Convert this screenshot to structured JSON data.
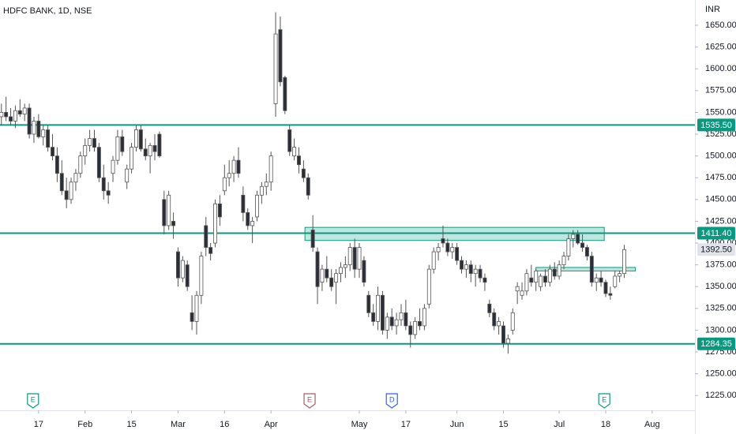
{
  "chart_data": {
    "type": "candlestick",
    "title": "HDFC BANK, 1D, NSE",
    "y_axis_label": "INR",
    "up_color": "#ffffff",
    "down_color": "#2a2e39",
    "level_color": "#089981",
    "grid": false,
    "xlim": [
      -0.3,
      149.2
    ],
    "ylim": [
      1208,
      1679
    ],
    "xticks": [
      {
        "value": 8,
        "label": "17"
      },
      {
        "value": 18,
        "label": "Feb"
      },
      {
        "value": 28,
        "label": "15"
      },
      {
        "value": 38,
        "label": "Mar"
      },
      {
        "value": 48,
        "label": "16"
      },
      {
        "value": 58,
        "label": "Apr"
      },
      {
        "value": 77,
        "label": "May"
      },
      {
        "value": 87,
        "label": "17"
      },
      {
        "value": 98,
        "label": "Jun"
      },
      {
        "value": 108,
        "label": "15"
      },
      {
        "value": 120,
        "label": "Jul"
      },
      {
        "value": 130,
        "label": "18"
      },
      {
        "value": 140,
        "label": "Aug"
      }
    ],
    "yticks": [
      {
        "value": 1225,
        "label": "1225.00"
      },
      {
        "value": 1250,
        "label": "1250.00"
      },
      {
        "value": 1275,
        "label": "1275.00"
      },
      {
        "value": 1300,
        "label": "1300.00"
      },
      {
        "value": 1325,
        "label": "1325.00"
      },
      {
        "value": 1350,
        "label": "1350.00"
      },
      {
        "value": 1375,
        "label": "1375.00"
      },
      {
        "value": 1400,
        "label": "1400.00"
      },
      {
        "value": 1425,
        "label": "1425.00"
      },
      {
        "value": 1450,
        "label": "1450.00"
      },
      {
        "value": 1475,
        "label": "1475.00"
      },
      {
        "value": 1500,
        "label": "1500.00"
      },
      {
        "value": 1525,
        "label": "1525.00"
      },
      {
        "value": 1550,
        "label": "1550.00"
      },
      {
        "value": 1575,
        "label": "1575.00"
      },
      {
        "value": 1600,
        "label": "1600.00"
      },
      {
        "value": 1625,
        "label": "1625.00"
      },
      {
        "value": 1650,
        "label": "1650.00"
      }
    ],
    "levels": [
      {
        "value": 1535.5,
        "label": "1535.50"
      },
      {
        "value": 1411.4,
        "label": "1411.40"
      },
      {
        "value": 1284.35,
        "label": "1284.35"
      }
    ],
    "last_price": {
      "value": 1392.5,
      "label": "1392.50"
    },
    "zones": [
      {
        "x": [
          65.3,
          129.7
        ],
        "y": [
          1403,
          1418
        ]
      },
      {
        "x": [
          115,
          136.4
        ],
        "y": [
          1368,
          1372
        ]
      }
    ],
    "events": [
      {
        "x": 6.8,
        "label": "E"
      },
      {
        "x": 66.3,
        "label": "E"
      },
      {
        "x": 84,
        "label": "D"
      },
      {
        "x": 129.7,
        "label": "E"
      }
    ],
    "candles": [
      {
        "o": 1545,
        "h": 1560,
        "l": 1535,
        "c": 1550
      },
      {
        "o": 1550,
        "h": 1568,
        "l": 1540,
        "c": 1545
      },
      {
        "o": 1545,
        "h": 1555,
        "l": 1535,
        "c": 1540
      },
      {
        "o": 1540,
        "h": 1558,
        "l": 1532,
        "c": 1552
      },
      {
        "o": 1552,
        "h": 1565,
        "l": 1545,
        "c": 1548
      },
      {
        "o": 1548,
        "h": 1560,
        "l": 1540,
        "c": 1555
      },
      {
        "o": 1555,
        "h": 1560,
        "l": 1520,
        "c": 1525
      },
      {
        "o": 1525,
        "h": 1545,
        "l": 1515,
        "c": 1540
      },
      {
        "o": 1540,
        "h": 1548,
        "l": 1520,
        "c": 1522
      },
      {
        "o": 1522,
        "h": 1535,
        "l": 1512,
        "c": 1530
      },
      {
        "o": 1530,
        "h": 1535,
        "l": 1505,
        "c": 1510
      },
      {
        "o": 1510,
        "h": 1525,
        "l": 1495,
        "c": 1500
      },
      {
        "o": 1500,
        "h": 1510,
        "l": 1470,
        "c": 1480
      },
      {
        "o": 1480,
        "h": 1495,
        "l": 1455,
        "c": 1460
      },
      {
        "o": 1460,
        "h": 1475,
        "l": 1440,
        "c": 1450
      },
      {
        "o": 1450,
        "h": 1475,
        "l": 1445,
        "c": 1470
      },
      {
        "o": 1470,
        "h": 1485,
        "l": 1460,
        "c": 1480
      },
      {
        "o": 1480,
        "h": 1505,
        "l": 1475,
        "c": 1500
      },
      {
        "o": 1500,
        "h": 1520,
        "l": 1490,
        "c": 1512
      },
      {
        "o": 1512,
        "h": 1530,
        "l": 1505,
        "c": 1520
      },
      {
        "o": 1520,
        "h": 1530,
        "l": 1505,
        "c": 1510
      },
      {
        "o": 1510,
        "h": 1515,
        "l": 1470,
        "c": 1475
      },
      {
        "o": 1475,
        "h": 1490,
        "l": 1450,
        "c": 1460
      },
      {
        "o": 1460,
        "h": 1470,
        "l": 1445,
        "c": 1455
      },
      {
        "o": 1480,
        "h": 1500,
        "l": 1470,
        "c": 1495
      },
      {
        "o": 1495,
        "h": 1530,
        "l": 1490,
        "c": 1522
      },
      {
        "o": 1522,
        "h": 1530,
        "l": 1500,
        "c": 1505
      },
      {
        "o": 1470,
        "h": 1490,
        "l": 1462,
        "c": 1485
      },
      {
        "o": 1485,
        "h": 1515,
        "l": 1480,
        "c": 1510
      },
      {
        "o": 1510,
        "h": 1535,
        "l": 1505,
        "c": 1530
      },
      {
        "o": 1530,
        "h": 1535,
        "l": 1505,
        "c": 1508
      },
      {
        "o": 1508,
        "h": 1520,
        "l": 1495,
        "c": 1500
      },
      {
        "o": 1500,
        "h": 1515,
        "l": 1480,
        "c": 1512
      },
      {
        "o": 1512,
        "h": 1525,
        "l": 1495,
        "c": 1505
      },
      {
        "o": 1525,
        "h": 1528,
        "l": 1498,
        "c": 1500
      },
      {
        "o": 1450,
        "h": 1460,
        "l": 1410,
        "c": 1420
      },
      {
        "o": 1420,
        "h": 1460,
        "l": 1415,
        "c": 1455
      },
      {
        "o": 1425,
        "h": 1435,
        "l": 1405,
        "c": 1420
      },
      {
        "o": 1390,
        "h": 1395,
        "l": 1350,
        "c": 1360
      },
      {
        "o": 1360,
        "h": 1385,
        "l": 1355,
        "c": 1380
      },
      {
        "o": 1375,
        "h": 1380,
        "l": 1345,
        "c": 1350
      },
      {
        "o": 1320,
        "h": 1340,
        "l": 1300,
        "c": 1310
      },
      {
        "o": 1310,
        "h": 1345,
        "l": 1295,
        "c": 1340
      },
      {
        "o": 1340,
        "h": 1390,
        "l": 1330,
        "c": 1385
      },
      {
        "o": 1420,
        "h": 1430,
        "l": 1385,
        "c": 1395
      },
      {
        "o": 1395,
        "h": 1400,
        "l": 1380,
        "c": 1388
      },
      {
        "o": 1400,
        "h": 1450,
        "l": 1395,
        "c": 1445
      },
      {
        "o": 1445,
        "h": 1455,
        "l": 1420,
        "c": 1430
      },
      {
        "o": 1460,
        "h": 1490,
        "l": 1455,
        "c": 1475
      },
      {
        "o": 1475,
        "h": 1495,
        "l": 1465,
        "c": 1480
      },
      {
        "o": 1480,
        "h": 1500,
        "l": 1470,
        "c": 1495
      },
      {
        "o": 1495,
        "h": 1510,
        "l": 1475,
        "c": 1480
      },
      {
        "o": 1455,
        "h": 1465,
        "l": 1425,
        "c": 1435
      },
      {
        "o": 1435,
        "h": 1440,
        "l": 1415,
        "c": 1420
      },
      {
        "o": 1420,
        "h": 1430,
        "l": 1400,
        "c": 1425
      },
      {
        "o": 1430,
        "h": 1460,
        "l": 1425,
        "c": 1455
      },
      {
        "o": 1455,
        "h": 1470,
        "l": 1445,
        "c": 1465
      },
      {
        "o": 1465,
        "h": 1480,
        "l": 1455,
        "c": 1470
      },
      {
        "o": 1470,
        "h": 1505,
        "l": 1460,
        "c": 1500
      },
      {
        "o": 1560,
        "h": 1665,
        "l": 1545,
        "c": 1640
      },
      {
        "o": 1645,
        "h": 1660,
        "l": 1580,
        "c": 1585
      },
      {
        "o": 1590,
        "h": 1592,
        "l": 1548,
        "c": 1552
      },
      {
        "o": 1530,
        "h": 1535,
        "l": 1500,
        "c": 1505
      },
      {
        "o": 1500,
        "h": 1520,
        "l": 1495,
        "c": 1510
      },
      {
        "o": 1500,
        "h": 1510,
        "l": 1480,
        "c": 1490
      },
      {
        "o": 1485,
        "h": 1495,
        "l": 1470,
        "c": 1475
      },
      {
        "o": 1475,
        "h": 1480,
        "l": 1450,
        "c": 1455
      },
      {
        "o": 1415,
        "h": 1432,
        "l": 1390,
        "c": 1395
      },
      {
        "o": 1390,
        "h": 1395,
        "l": 1330,
        "c": 1350
      },
      {
        "o": 1355,
        "h": 1375,
        "l": 1345,
        "c": 1370
      },
      {
        "o": 1370,
        "h": 1385,
        "l": 1355,
        "c": 1360
      },
      {
        "o": 1360,
        "h": 1370,
        "l": 1345,
        "c": 1350
      },
      {
        "o": 1355,
        "h": 1370,
        "l": 1330,
        "c": 1365
      },
      {
        "o": 1365,
        "h": 1378,
        "l": 1355,
        "c": 1372
      },
      {
        "o": 1372,
        "h": 1385,
        "l": 1360,
        "c": 1375
      },
      {
        "o": 1375,
        "h": 1400,
        "l": 1368,
        "c": 1395
      },
      {
        "o": 1395,
        "h": 1405,
        "l": 1360,
        "c": 1370
      },
      {
        "o": 1370,
        "h": 1400,
        "l": 1360,
        "c": 1395
      },
      {
        "o": 1380,
        "h": 1385,
        "l": 1350,
        "c": 1355
      },
      {
        "o": 1340,
        "h": 1345,
        "l": 1315,
        "c": 1320
      },
      {
        "o": 1320,
        "h": 1330,
        "l": 1305,
        "c": 1310
      },
      {
        "o": 1310,
        "h": 1350,
        "l": 1300,
        "c": 1340
      },
      {
        "o": 1340,
        "h": 1345,
        "l": 1295,
        "c": 1300
      },
      {
        "o": 1300,
        "h": 1320,
        "l": 1290,
        "c": 1315
      },
      {
        "o": 1315,
        "h": 1325,
        "l": 1300,
        "c": 1305
      },
      {
        "o": 1305,
        "h": 1320,
        "l": 1295,
        "c": 1312
      },
      {
        "o": 1312,
        "h": 1330,
        "l": 1305,
        "c": 1320
      },
      {
        "o": 1320,
        "h": 1335,
        "l": 1300,
        "c": 1305
      },
      {
        "o": 1305,
        "h": 1310,
        "l": 1280,
        "c": 1295
      },
      {
        "o": 1295,
        "h": 1315,
        "l": 1290,
        "c": 1310
      },
      {
        "o": 1310,
        "h": 1325,
        "l": 1300,
        "c": 1305
      },
      {
        "o": 1305,
        "h": 1330,
        "l": 1300,
        "c": 1325
      },
      {
        "o": 1330,
        "h": 1375,
        "l": 1325,
        "c": 1370
      },
      {
        "o": 1370,
        "h": 1395,
        "l": 1365,
        "c": 1390
      },
      {
        "o": 1390,
        "h": 1400,
        "l": 1380,
        "c": 1395
      },
      {
        "o": 1405,
        "h": 1420,
        "l": 1395,
        "c": 1400
      },
      {
        "o": 1400,
        "h": 1405,
        "l": 1385,
        "c": 1390
      },
      {
        "o": 1390,
        "h": 1400,
        "l": 1382,
        "c": 1395
      },
      {
        "o": 1395,
        "h": 1400,
        "l": 1375,
        "c": 1380
      },
      {
        "o": 1380,
        "h": 1385,
        "l": 1365,
        "c": 1370
      },
      {
        "o": 1370,
        "h": 1380,
        "l": 1360,
        "c": 1375
      },
      {
        "o": 1375,
        "h": 1380,
        "l": 1355,
        "c": 1365
      },
      {
        "o": 1365,
        "h": 1375,
        "l": 1350,
        "c": 1370
      },
      {
        "o": 1370,
        "h": 1375,
        "l": 1355,
        "c": 1360
      },
      {
        "o": 1360,
        "h": 1365,
        "l": 1345,
        "c": 1355
      },
      {
        "o": 1330,
        "h": 1335,
        "l": 1315,
        "c": 1320
      },
      {
        "o": 1320,
        "h": 1325,
        "l": 1300,
        "c": 1305
      },
      {
        "o": 1305,
        "h": 1315,
        "l": 1295,
        "c": 1310
      },
      {
        "o": 1305,
        "h": 1310,
        "l": 1280,
        "c": 1285
      },
      {
        "o": 1285,
        "h": 1295,
        "l": 1273,
        "c": 1290
      },
      {
        "o": 1300,
        "h": 1325,
        "l": 1295,
        "c": 1320
      },
      {
        "o": 1345,
        "h": 1355,
        "l": 1330,
        "c": 1350
      },
      {
        "o": 1340,
        "h": 1355,
        "l": 1335,
        "c": 1345
      },
      {
        "o": 1345,
        "h": 1370,
        "l": 1340,
        "c": 1365
      },
      {
        "o": 1360,
        "h": 1375,
        "l": 1350,
        "c": 1355
      },
      {
        "o": 1355,
        "h": 1370,
        "l": 1345,
        "c": 1368
      },
      {
        "o": 1350,
        "h": 1365,
        "l": 1345,
        "c": 1362
      },
      {
        "o": 1362,
        "h": 1370,
        "l": 1350,
        "c": 1355
      },
      {
        "o": 1355,
        "h": 1375,
        "l": 1350,
        "c": 1370
      },
      {
        "o": 1370,
        "h": 1378,
        "l": 1358,
        "c": 1362
      },
      {
        "o": 1362,
        "h": 1380,
        "l": 1358,
        "c": 1375
      },
      {
        "o": 1375,
        "h": 1390,
        "l": 1370,
        "c": 1385
      },
      {
        "o": 1385,
        "h": 1410,
        "l": 1380,
        "c": 1405
      },
      {
        "o": 1405,
        "h": 1415,
        "l": 1395,
        "c": 1410
      },
      {
        "o": 1410,
        "h": 1415,
        "l": 1398,
        "c": 1400
      },
      {
        "o": 1400,
        "h": 1410,
        "l": 1390,
        "c": 1395
      },
      {
        "o": 1395,
        "h": 1398,
        "l": 1380,
        "c": 1385
      },
      {
        "o": 1385,
        "h": 1390,
        "l": 1350,
        "c": 1355
      },
      {
        "o": 1355,
        "h": 1365,
        "l": 1345,
        "c": 1360
      },
      {
        "o": 1360,
        "h": 1368,
        "l": 1350,
        "c": 1355
      },
      {
        "o": 1355,
        "h": 1358,
        "l": 1338,
        "c": 1342
      },
      {
        "o": 1342,
        "h": 1350,
        "l": 1335,
        "c": 1340
      },
      {
        "o": 1350,
        "h": 1368,
        "l": 1348,
        "c": 1362
      },
      {
        "o": 1362,
        "h": 1368,
        "l": 1355,
        "c": 1365
      },
      {
        "o": 1365,
        "h": 1398,
        "l": 1360,
        "c": 1392.5
      }
    ]
  }
}
